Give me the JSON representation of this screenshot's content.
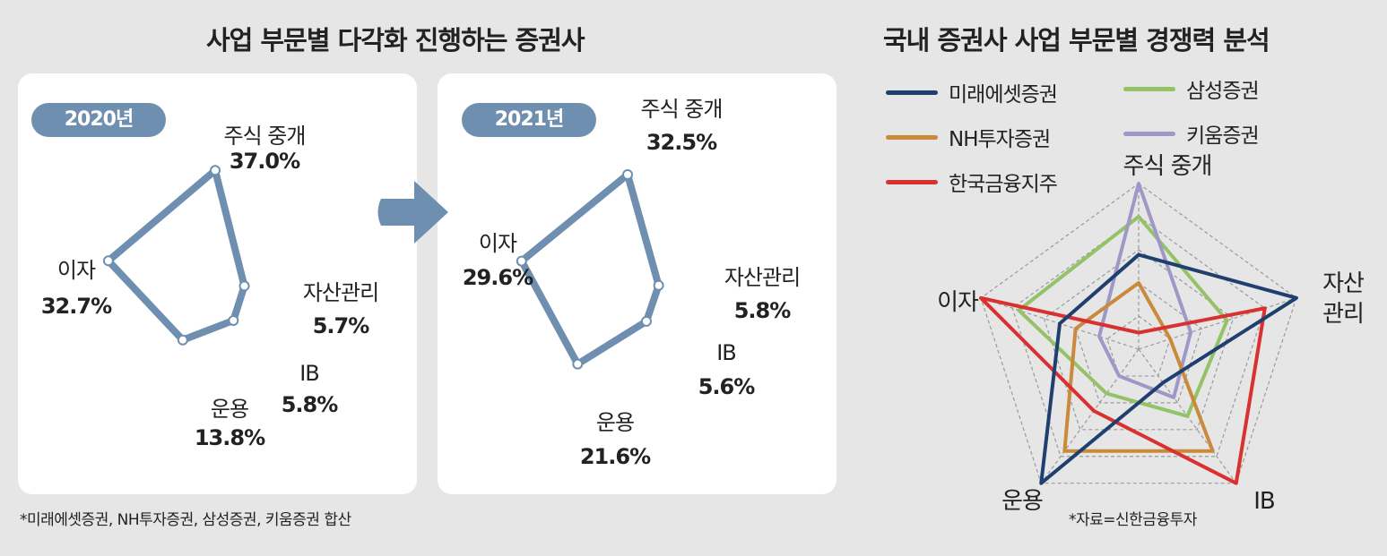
{
  "left": {
    "title": "사업 부문별 다각화 진행하는 증권사",
    "footnote": "*미래에셋증권, NH투자증권, 삼성증권, 키움증권 합산"
  },
  "right": {
    "title": "국내 증권사 사업 부문별 경쟁력 분석",
    "source": "*자료=신한금융투자"
  },
  "colors": {
    "accent": "#6f8fb0",
    "mirae": "#1f3f6e",
    "nh": "#c98a3c",
    "hankook": "#d9312f",
    "samsung": "#94c266",
    "kiwoom": "#9f98c6",
    "grid": "#9a9a9a"
  },
  "chart_data": [
    {
      "type": "radar",
      "label": "2020년",
      "categories": [
        "주식 중개",
        "자산관리",
        "IB",
        "운용",
        "이자"
      ],
      "values": [
        37.0,
        5.7,
        5.8,
        13.8,
        32.7
      ],
      "value_labels": [
        "37.0%",
        "5.7%",
        "5.8%",
        "13.8%",
        "32.7%"
      ]
    },
    {
      "type": "radar",
      "label": "2021년",
      "categories": [
        "주식 중개",
        "자산관리",
        "IB",
        "운용",
        "이자"
      ],
      "values": [
        32.5,
        5.8,
        5.6,
        21.6,
        29.6
      ],
      "value_labels": [
        "32.5%",
        "5.8%",
        "5.6%",
        "21.6%",
        "29.6%"
      ]
    },
    {
      "type": "radar",
      "axes": [
        "주식 중개",
        "자산관리",
        "IB",
        "운용",
        "이자"
      ],
      "axis_labels": [
        "주식 중개",
        "자산\n관리",
        "IB",
        "운용",
        "이자"
      ],
      "levels": 5,
      "series": [
        {
          "name": "미래에셋증권",
          "color_key": "mirae",
          "values": [
            0.57,
            1.0,
            0.25,
            1.0,
            0.5
          ]
        },
        {
          "name": "NH투자증권",
          "color_key": "nh",
          "values": [
            0.4,
            0.2,
            0.76,
            0.76,
            0.4
          ]
        },
        {
          "name": "한국금융지주",
          "color_key": "hankook",
          "values": [
            0.1,
            0.8,
            1.0,
            0.46,
            1.0
          ]
        },
        {
          "name": "삼성증권",
          "color_key": "samsung",
          "values": [
            0.8,
            0.56,
            0.5,
            0.33,
            0.76
          ]
        },
        {
          "name": "키움증권",
          "color_key": "kiwoom",
          "values": [
            1.0,
            0.33,
            0.36,
            0.2,
            0.25
          ]
        }
      ]
    }
  ]
}
